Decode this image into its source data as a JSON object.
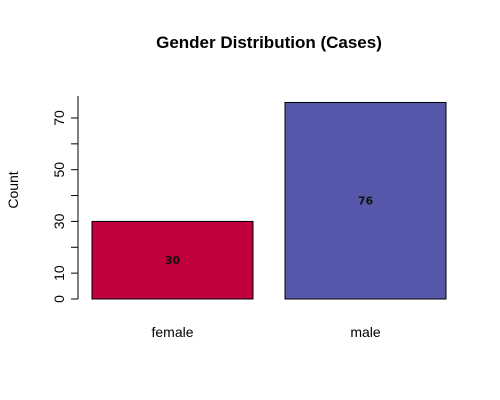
{
  "chart_data": {
    "type": "bar",
    "title": "Gender Distribution (Cases)",
    "xlabel": "",
    "ylabel": "Count",
    "categories": [
      "female",
      "male"
    ],
    "values": [
      30,
      76
    ],
    "data_labels": [
      "30",
      "76"
    ],
    "colors": [
      "#c0003c",
      "#5558aa"
    ],
    "ylim": [
      0,
      78.5
    ],
    "y_ticks": [
      0,
      10,
      30,
      50,
      70
    ],
    "y_ticks_labeled": [
      "0",
      "10",
      "30",
      "50",
      "70"
    ],
    "y_tick_marks": [
      0,
      10,
      20,
      30,
      40,
      50,
      60,
      70
    ],
    "grid": false,
    "legend": "none"
  }
}
